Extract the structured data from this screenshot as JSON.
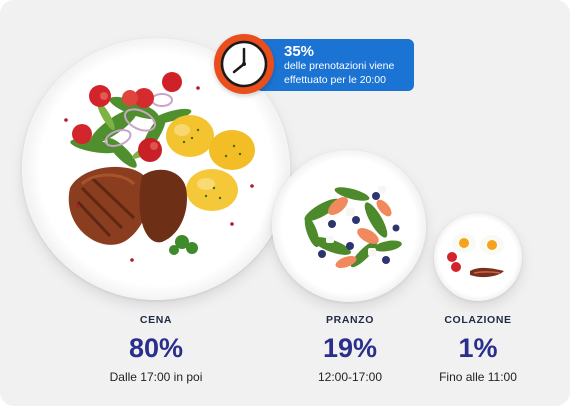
{
  "callout": {
    "percentage": "35%",
    "text_line1": "delle prenotazioni viene",
    "text_line2": "effettuato per le 20:00",
    "icon": "clock-icon",
    "color": "#1b73d4",
    "clock_color": "#e94e1b"
  },
  "meals": [
    {
      "name": "CENA",
      "percentage": "80%",
      "time": "Dalle 17:00 in poi",
      "image": "dinner-plate-steak-potatoes-salad"
    },
    {
      "name": "PRANZO",
      "percentage": "19%",
      "time": "12:00-17:00",
      "image": "lunch-plate-salad"
    },
    {
      "name": "COLAZIONE",
      "percentage": "1%",
      "time": "Fino alle 11:00",
      "image": "breakfast-plate-eggs-bacon"
    }
  ],
  "colors": {
    "background": "#f1f1f2",
    "percent_text": "#2a2e8c",
    "label_text": "#1f2a44"
  }
}
